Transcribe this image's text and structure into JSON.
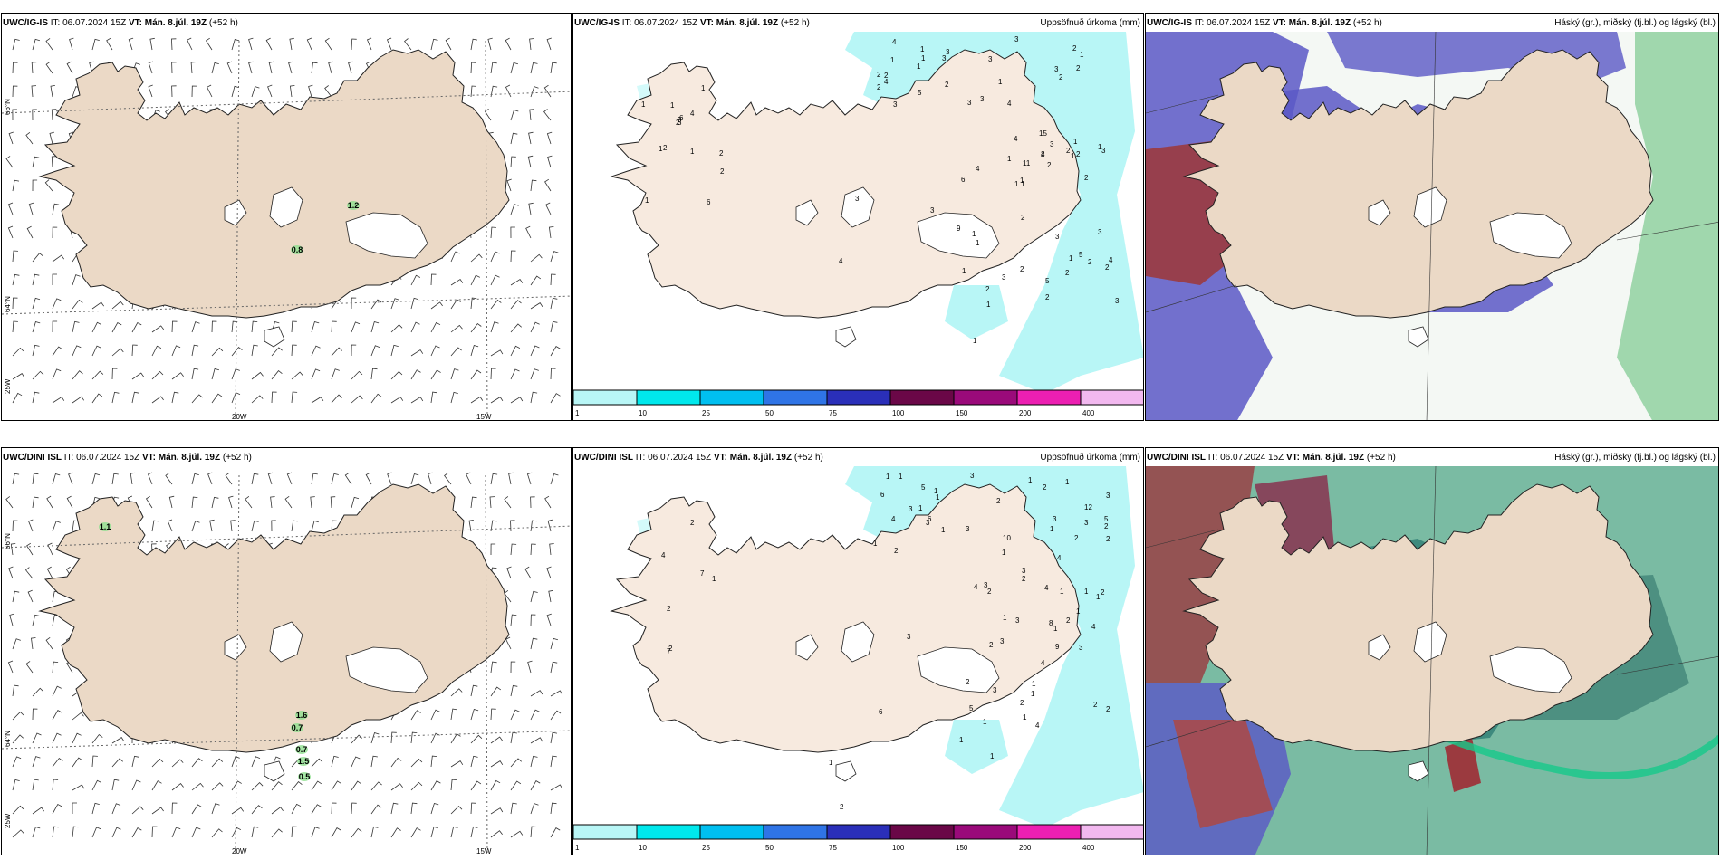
{
  "panels": {
    "t1": {
      "model": "UWC/IG-IS",
      "it": "IT: 06.07.2024 15Z",
      "vt": "VT: Mán. 8.júl. 19Z",
      "lead": "(+52 h)"
    },
    "t2": {
      "model": "UWC/IG-IS",
      "it": "IT: 06.07.2024 15Z",
      "vt": "VT: Mán. 8.júl. 19Z",
      "lead": "(+52 h)",
      "field": "Uppsöfnuð úrkoma (mm)"
    },
    "t3": {
      "model": "UWC/IG-IS",
      "it": "IT: 06.07.2024 15Z",
      "vt": "VT: Mán. 8.júl. 19Z",
      "lead": "(+52 h)",
      "field": "Háský (gr.), miðský (fj.bl.) og lágský (bl.)"
    },
    "b1": {
      "model": "UWC/DINI ISL",
      "it": "IT: 06.07.2024 15Z",
      "vt": "VT: Mán. 8.júl. 19Z",
      "lead": "(+52 h)"
    },
    "b2": {
      "model": "UWC/DINI ISL",
      "it": "IT: 06.07.2024 15Z",
      "vt": "VT: Mán. 8.júl. 19Z",
      "lead": "(+52 h)",
      "field": "Uppsöfnuð úrkoma (mm)"
    },
    "b3": {
      "model": "UWC/DINI ISL",
      "it": "IT: 06.07.2024 15Z",
      "vt": "VT: Mán. 8.júl. 19Z",
      "lead": "(+52 h)",
      "field": "Háský (gr.), miðský (fj.bl.) og lágský (bl.)"
    }
  },
  "axis": {
    "lat66": "66°N",
    "lat64": "64°N",
    "lon20": "20W",
    "lon15": "15W",
    "lon25": "25W"
  },
  "colorbar": {
    "ticks": [
      "1",
      "10",
      "25",
      "50",
      "75",
      "100",
      "150",
      "200",
      "400"
    ],
    "colors": [
      "#b8f6f6",
      "#00e8ec",
      "#00bff0",
      "#2f74e6",
      "#2a2fb9",
      "#6a0747",
      "#9a0a7a",
      "#ec1fb2",
      "#f2b8ef"
    ]
  },
  "windLabels": {
    "top": [
      "1.2",
      "0.8"
    ],
    "bottom": [
      "1.1",
      "1.6",
      "0.7",
      "0.7",
      "1.5",
      "0.5"
    ]
  },
  "precipTop": [
    "3",
    "1",
    "2",
    "3",
    "4",
    "5",
    "4",
    "4",
    "2",
    "3",
    "1",
    "2",
    "2",
    "6",
    "5",
    "3",
    "1",
    "4",
    "5",
    "11",
    "1",
    "2",
    "3",
    "1",
    "2",
    "4",
    "2",
    "9",
    "3",
    "1",
    "3",
    "2",
    "1",
    "2",
    "1",
    "2",
    "3",
    "2",
    "1",
    "3",
    "1",
    "2",
    "2",
    "1",
    "3",
    "2",
    "1",
    "2",
    "2",
    "4",
    "1",
    "1",
    "3",
    "3",
    "1",
    "2",
    "2",
    "3",
    "1",
    "4",
    "3",
    "1",
    "1",
    "2",
    "1",
    "3",
    "1",
    "2",
    "6",
    "1",
    "3",
    "2",
    "6",
    "4",
    "1",
    "4",
    "3",
    "2",
    "3",
    "1",
    "1",
    "1",
    "15",
    "2"
  ],
  "precipBottom": [
    "1",
    "1",
    "2",
    "3",
    "3",
    "1",
    "2",
    "4",
    "3",
    "1",
    "3",
    "1",
    "6",
    "5",
    "4",
    "6",
    "10",
    "3",
    "7",
    "3",
    "1",
    "12",
    "5",
    "2",
    "4",
    "2",
    "1",
    "2",
    "9",
    "1",
    "3",
    "1",
    "2",
    "2",
    "2",
    "4",
    "2",
    "1",
    "1",
    "3",
    "2",
    "1",
    "1",
    "2",
    "2",
    "1",
    "2",
    "1",
    "3",
    "2",
    "5",
    "1",
    "1",
    "2",
    "4",
    "1",
    "1",
    "3",
    "2",
    "7",
    "2",
    "8",
    "1",
    "1",
    "1",
    "2",
    "2",
    "3",
    "3",
    "4",
    "3",
    "6",
    "4",
    "3",
    "4",
    "1",
    "1",
    "1"
  ],
  "colors": {
    "land": "#ebd9c6",
    "land2": "#f7eadf",
    "sea": "#ffffff",
    "precip1": "#b8f6f6"
  }
}
